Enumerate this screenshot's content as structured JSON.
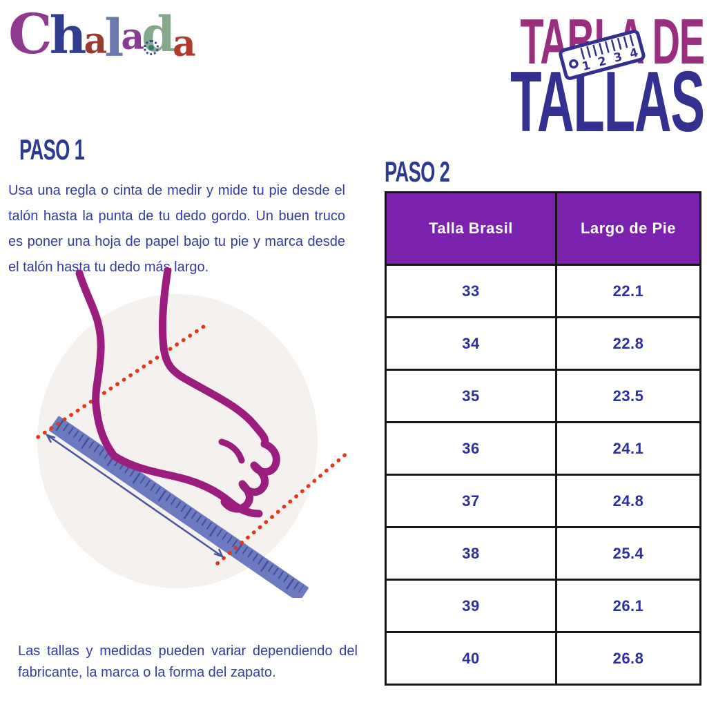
{
  "brand": {
    "name": "Chalada",
    "letters": [
      {
        "char": "C",
        "color": "#8F3A8F"
      },
      {
        "char": "h",
        "color": "#303D8F"
      },
      {
        "char": "a",
        "color": "#9C3A31"
      },
      {
        "char": "l",
        "color": "#6B79AE"
      },
      {
        "char": "a",
        "color": "#8A3A96"
      },
      {
        "char": "d",
        "color": "#85A98B"
      },
      {
        "char": "a",
        "color": "#B13A2B"
      }
    ]
  },
  "title": {
    "line1": "TABLA DE",
    "line2": "TALLAS",
    "ruler_numbers": "1 2 3 4"
  },
  "step1": {
    "heading": "PASO 1",
    "body": "Usa una regla o cinta de medir y mide tu pie desde el talón hasta la punta de tu dedo gordo. Un buen truco es poner una hoja de papel bajo tu pie y marca desde el talón hasta tu dedo más largo."
  },
  "step2": {
    "heading": "PASO 2"
  },
  "note": "Las tallas y medidas pueden variar dependiendo del fabricante, la marca o la forma del zapato.",
  "table": {
    "headers": [
      "Talla Brasil",
      "Largo de Pie"
    ],
    "rows": [
      {
        "talla": "33",
        "largo": "22.1"
      },
      {
        "talla": "34",
        "largo": "22.8"
      },
      {
        "talla": "35",
        "largo": "23.5"
      },
      {
        "talla": "36",
        "largo": "24.1"
      },
      {
        "talla": "37",
        "largo": "24.8"
      },
      {
        "talla": "38",
        "largo": "25.4"
      },
      {
        "talla": "39",
        "largo": "26.1"
      },
      {
        "talla": "40",
        "largo": "26.8"
      }
    ]
  },
  "colors": {
    "title-magenta": "#992E7E",
    "indigo": "#34308F",
    "heading-blue": "#2C3A90",
    "body-text": "#323B9E",
    "table-text": "#2B2FA2",
    "table-header-bg": "#7A22AD",
    "table-border": "#161616",
    "foot": "#9B1D7D",
    "ruler": "#6C7ABF",
    "ruler-tick": "#454F9B",
    "guide-red": "#E2371D",
    "arrow-blue": "#4A569E",
    "circle-bg": "#F5F1EE"
  }
}
